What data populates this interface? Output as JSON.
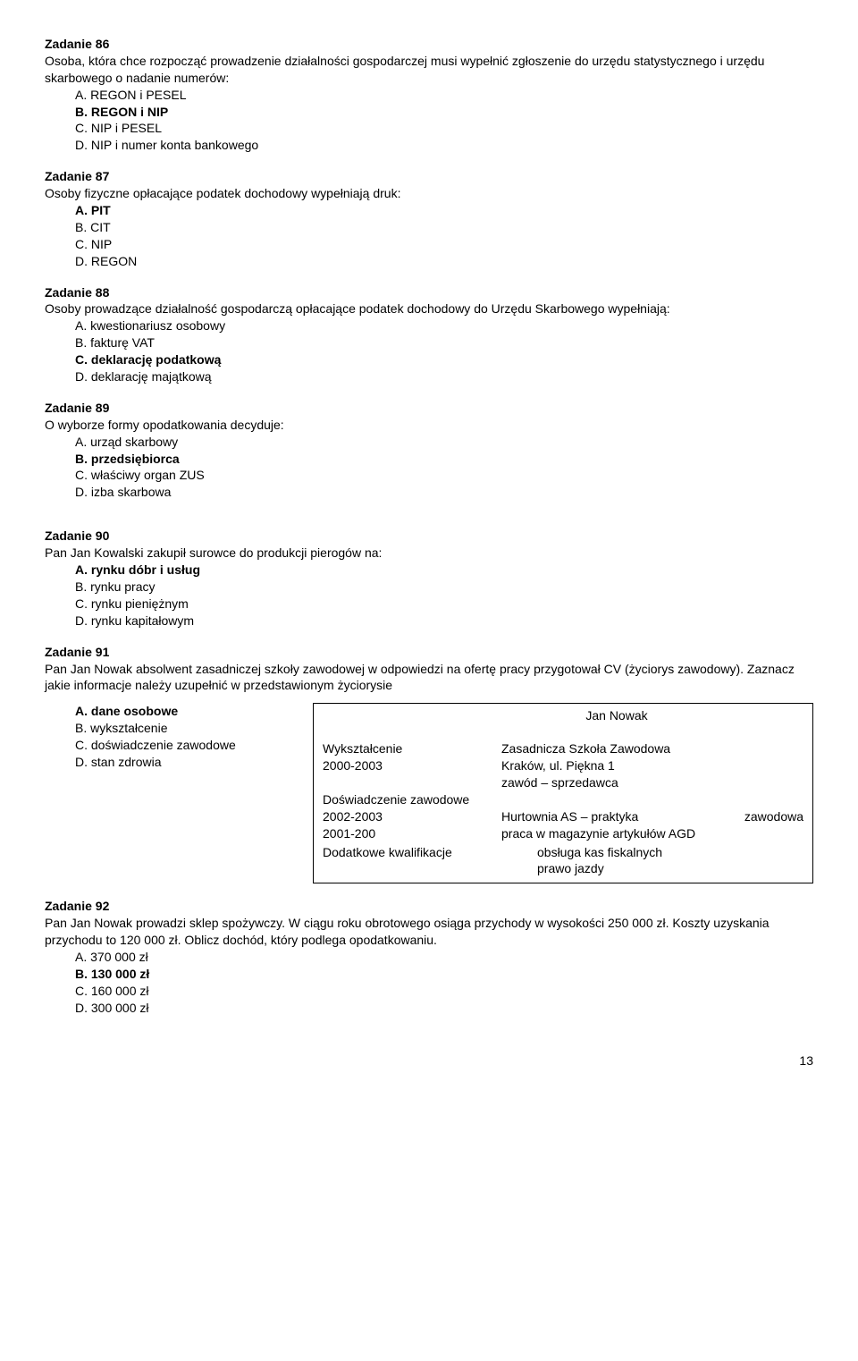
{
  "tasks": [
    {
      "num": "Zadanie 86",
      "text": "Osoba, która chce rozpocząć prowadzenie działalności gospodarczej musi wypełnić zgłoszenie do urzędu statystycznego i urzędu skarbowego o nadanie numerów:",
      "opts": [
        {
          "l": "A.",
          "t": "REGON  i  PESEL",
          "b": false
        },
        {
          "l": "B.",
          "t": "REGON  i  NIP",
          "b": true
        },
        {
          "l": "C.",
          "t": "NIP  i  PESEL",
          "b": false
        },
        {
          "l": "D.",
          "t": "NIP  i numer konta bankowego",
          "b": false
        }
      ]
    },
    {
      "num": "Zadanie 87",
      "text": "Osoby fizyczne opłacające podatek dochodowy wypełniają druk:",
      "opts": [
        {
          "l": "A.",
          "t": "PIT",
          "b": true
        },
        {
          "l": "B.",
          "t": "CIT",
          "b": false
        },
        {
          "l": "C.",
          "t": "NIP",
          "b": false
        },
        {
          "l": "D.",
          "t": "REGON",
          "b": false
        }
      ]
    },
    {
      "num": "Zadanie 88",
      "text": "Osoby prowadzące działalność gospodarczą opłacające podatek dochodowy do Urzędu Skarbowego wypełniają:",
      "opts": [
        {
          "l": "A.",
          "t": "kwestionariusz osobowy",
          "b": false
        },
        {
          "l": "B.",
          "t": "fakturę VAT",
          "b": false
        },
        {
          "l": "C.",
          "t": "deklarację podatkową",
          "b": true
        },
        {
          "l": "D.",
          "t": "deklarację majątkową",
          "b": false
        }
      ]
    },
    {
      "num": "Zadanie 89",
      "text": "O wyborze formy opodatkowania decyduje:",
      "opts": [
        {
          "l": "A.",
          "t": "urząd skarbowy",
          "b": false
        },
        {
          "l": "B.",
          "t": "przedsiębiorca",
          "b": true
        },
        {
          "l": "C.",
          "t": "właściwy organ ZUS",
          "b": false
        },
        {
          "l": "D.",
          "t": "izba skarbowa",
          "b": false
        }
      ]
    },
    {
      "num": "Zadanie 90",
      "text": "Pan Jan Kowalski zakupił surowce do produkcji pierogów na:",
      "opts": [
        {
          "l": "A.",
          "t": "rynku dóbr i usług",
          "b": true
        },
        {
          "l": "B.",
          "t": "rynku pracy",
          "b": false
        },
        {
          "l": "C.",
          "t": "rynku pieniężnym",
          "b": false
        },
        {
          "l": "D.",
          "t": "rynku kapitałowym",
          "b": false
        }
      ]
    }
  ],
  "task91": {
    "num": "Zadanie 91",
    "text": "Pan Jan Nowak absolwent zasadniczej szkoły zawodowej w odpowiedzi na ofertę  pracy przygotował CV (życiorys zawodowy). Zaznacz jakie informacje należy uzupełnić w przedstawionym życiorysie",
    "opts": [
      {
        "l": "A.",
        "t": "dane osobowe",
        "b": true
      },
      {
        "l": "B.",
        "t": "wykształcenie",
        "b": false
      },
      {
        "l": "C.",
        "t": "doświadczenie zawodowe",
        "b": false
      },
      {
        "l": "D.",
        "t": "stan zdrowia",
        "b": false
      }
    ],
    "cv": {
      "name": "Jan Nowak",
      "edu_h": "Wykształcenie",
      "edu_y": "2000-2003",
      "edu_v1": "Zasadnicza Szkoła Zawodowa",
      "edu_v2": "Kraków, ul. Piękna 1",
      "edu_v3": "zawód – sprzedawca",
      "exp_h": "Doświadczenie zawodowe",
      "exp_y1": " 2002-2003",
      "exp_v1a": "Hurtownia AS – praktyka",
      "exp_v1b": "zawodowa",
      "exp_y2": " 2001-200",
      "exp_v2": "praca w magazynie artykułów AGD",
      "ext_h": "Dodatkowe kwalifikacje",
      "ext_v1": "obsługa kas fiskalnych",
      "ext_v2": "prawo jazdy"
    }
  },
  "task92": {
    "num": "Zadanie 92",
    "text": "Pan Jan Nowak prowadzi sklep spożywczy. W ciągu roku obrotowego osiąga przychody w wysokości 250 000 zł. Koszty uzyskania przychodu to 120 000 zł. Oblicz dochód, który podlega opodatkowaniu.",
    "opts": [
      {
        "l": "A.",
        "t": "370 000 zł",
        "b": false
      },
      {
        "l": "B.",
        "t": "130 000 zł",
        "b": true
      },
      {
        "l": "C.",
        "t": "160 000 zł",
        "b": false
      },
      {
        "l": "D.",
        "t": "300 000 zł",
        "b": false
      }
    ]
  },
  "page": "13"
}
